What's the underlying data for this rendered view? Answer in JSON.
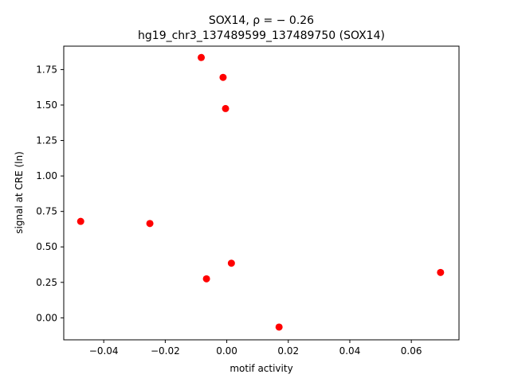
{
  "chart_data": {
    "type": "scatter",
    "title_line1": "SOX14, ρ = − 0.26",
    "title_line2": "hg19_chr3_137489599_137489750 (SOX14)",
    "xlabel": "motif activity",
    "ylabel": "signal at CRE (ln)",
    "xlim": [
      -0.053,
      0.0755
    ],
    "ylim": [
      -0.155,
      1.915
    ],
    "xticks": [
      -0.04,
      -0.02,
      0.0,
      0.02,
      0.04,
      0.06
    ],
    "xtick_labels": [
      "−0.04",
      "−0.02",
      "0.00",
      "0.02",
      "0.04",
      "0.06"
    ],
    "yticks": [
      0.0,
      0.25,
      0.5,
      0.75,
      1.0,
      1.25,
      1.5,
      1.75
    ],
    "ytick_labels": [
      "0.00",
      "0.25",
      "0.50",
      "0.75",
      "1.00",
      "1.25",
      "1.50",
      "1.75"
    ],
    "grid": false,
    "point_color": "#ff0000",
    "points": [
      {
        "x": -0.0475,
        "y": 0.68
      },
      {
        "x": -0.025,
        "y": 0.665
      },
      {
        "x": -0.0083,
        "y": 1.835
      },
      {
        "x": -0.0066,
        "y": 0.275
      },
      {
        "x": -0.0012,
        "y": 1.695
      },
      {
        "x": -0.0004,
        "y": 1.475
      },
      {
        "x": 0.0015,
        "y": 0.385
      },
      {
        "x": 0.017,
        "y": -0.065
      },
      {
        "x": 0.0695,
        "y": 0.32
      }
    ]
  }
}
